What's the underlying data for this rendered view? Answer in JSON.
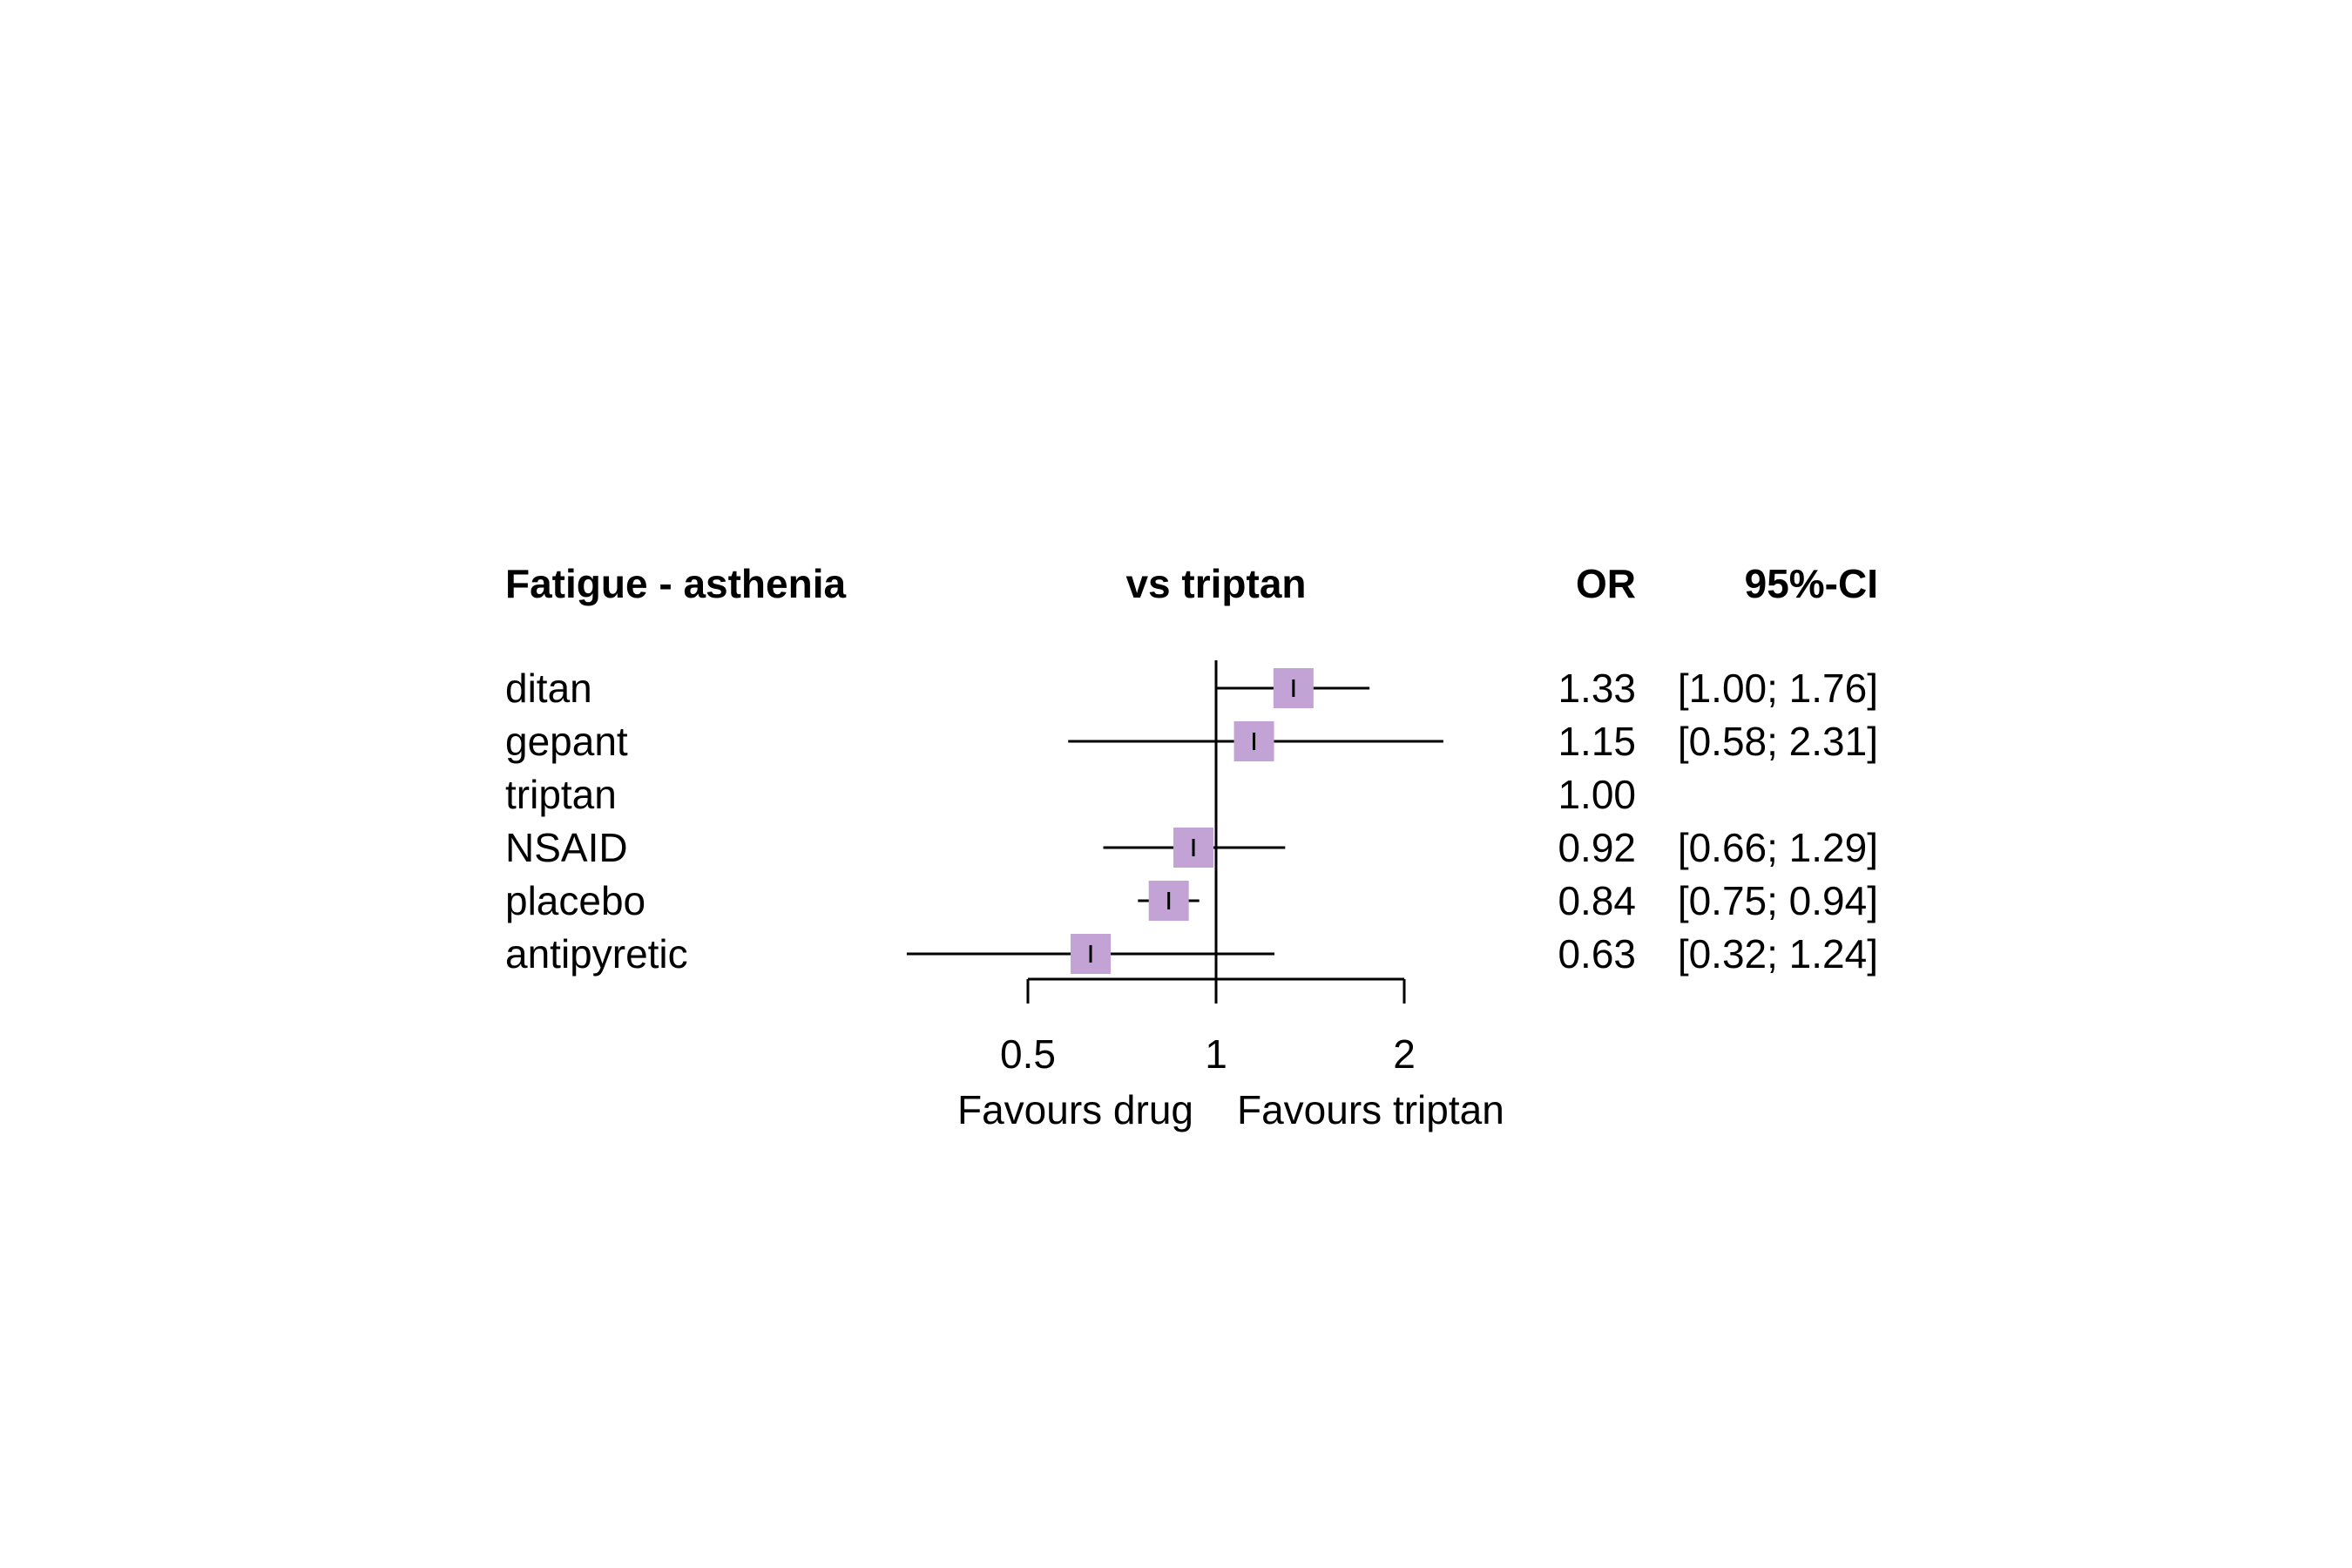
{
  "chart_data": {
    "type": "forest",
    "title": "Fatigue - asthenia",
    "column_headers": {
      "plot": "vs triptan",
      "estimate": "OR",
      "ci": "95%-CI"
    },
    "rows": [
      {
        "label": "ditan",
        "or": 1.33,
        "lower": 1.0,
        "upper": 1.76,
        "or_text": "1.33",
        "ci_text": "[1.00; 1.76]"
      },
      {
        "label": "gepant",
        "or": 1.15,
        "lower": 0.58,
        "upper": 2.31,
        "or_text": "1.15",
        "ci_text": "[0.58; 2.31]"
      },
      {
        "label": "triptan",
        "or": 1.0,
        "lower": null,
        "upper": null,
        "or_text": "1.00",
        "ci_text": ""
      },
      {
        "label": "NSAID",
        "or": 0.92,
        "lower": 0.66,
        "upper": 1.29,
        "or_text": "0.92",
        "ci_text": "[0.66; 1.29]"
      },
      {
        "label": "placebo",
        "or": 0.84,
        "lower": 0.75,
        "upper": 0.94,
        "or_text": "0.84",
        "ci_text": "[0.75; 0.94]"
      },
      {
        "label": "antipyretic",
        "or": 0.63,
        "lower": 0.32,
        "upper": 1.24,
        "or_text": "0.63",
        "ci_text": "[0.32; 1.24]"
      }
    ],
    "x_axis": {
      "scale": "log",
      "ticks": [
        0.5,
        1,
        2
      ],
      "tick_labels": [
        "0.5",
        "1",
        "2"
      ],
      "reference_line": 1
    },
    "favours_left": "Favours drug",
    "favours_right": "Favours triptan",
    "box_color": "#c3a3d6",
    "line_color": "#000000"
  }
}
